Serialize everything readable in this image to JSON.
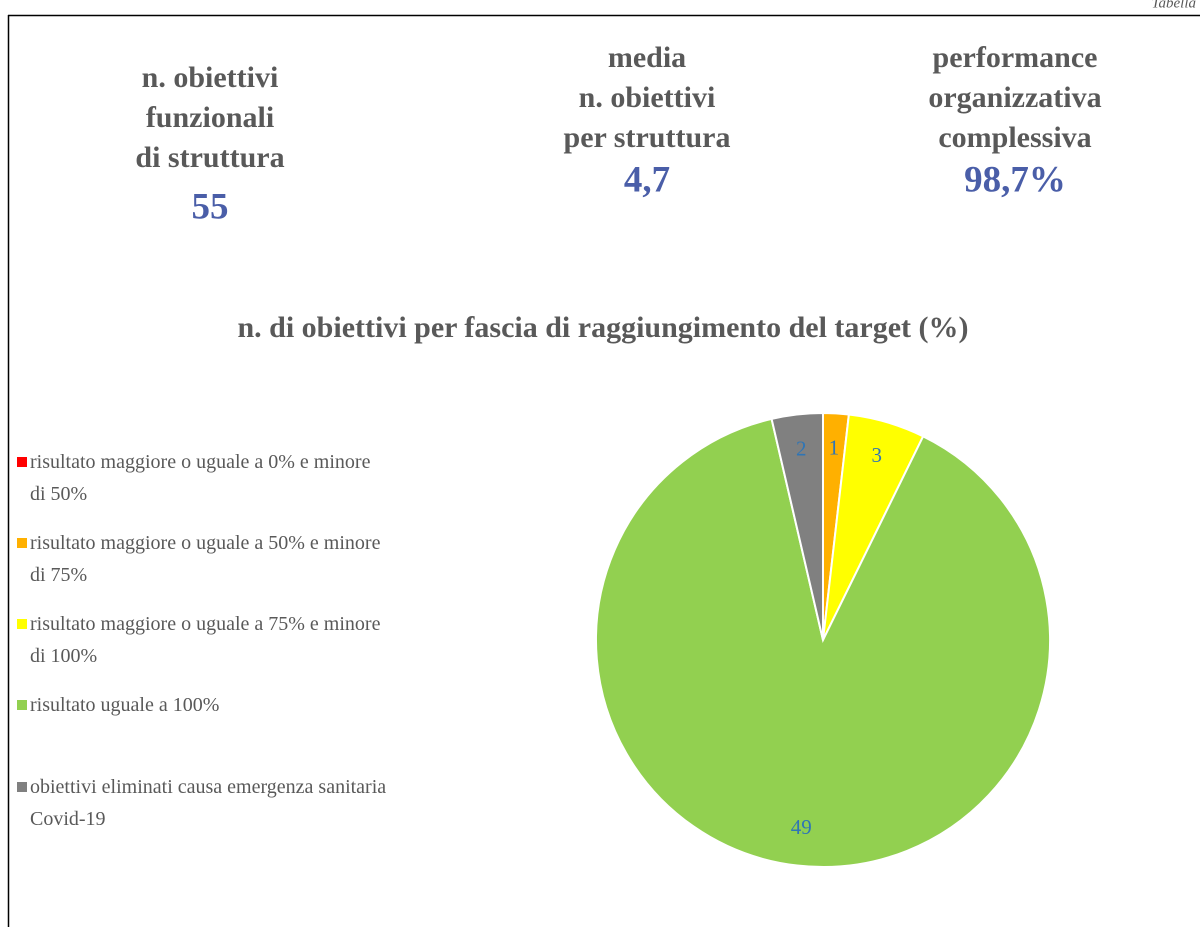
{
  "header": {
    "label": "Tabella"
  },
  "kpis": [
    {
      "label_lines": [
        "n. obiettivi",
        "funzionali",
        "di struttura"
      ],
      "value": "55"
    },
    {
      "label_lines": [
        "media",
        "n. obiettivi",
        "per struttura"
      ],
      "value": "4,7"
    },
    {
      "label_lines": [
        "performance",
        "organizzativa",
        "complessiva"
      ],
      "value": "98,7%"
    }
  ],
  "chart_data": {
    "type": "pie",
    "title": "n. di obiettivi per fascia di raggiungimento del target (%)",
    "categories": [
      "risultato maggiore o uguale a 0% e minore di 50%",
      "risultato maggiore o uguale a 50% e minore di 75%",
      "risultato maggiore o uguale a 75% e minore di 100%",
      "risultato uguale a 100%",
      "obiettivi eliminati causa emergenza sanitaria Covid-19"
    ],
    "values": [
      0,
      1,
      3,
      49,
      2
    ],
    "colors": [
      "#ff0000",
      "#ffb000",
      "#ffff00",
      "#92d050",
      "#808080"
    ],
    "legend": "left"
  }
}
